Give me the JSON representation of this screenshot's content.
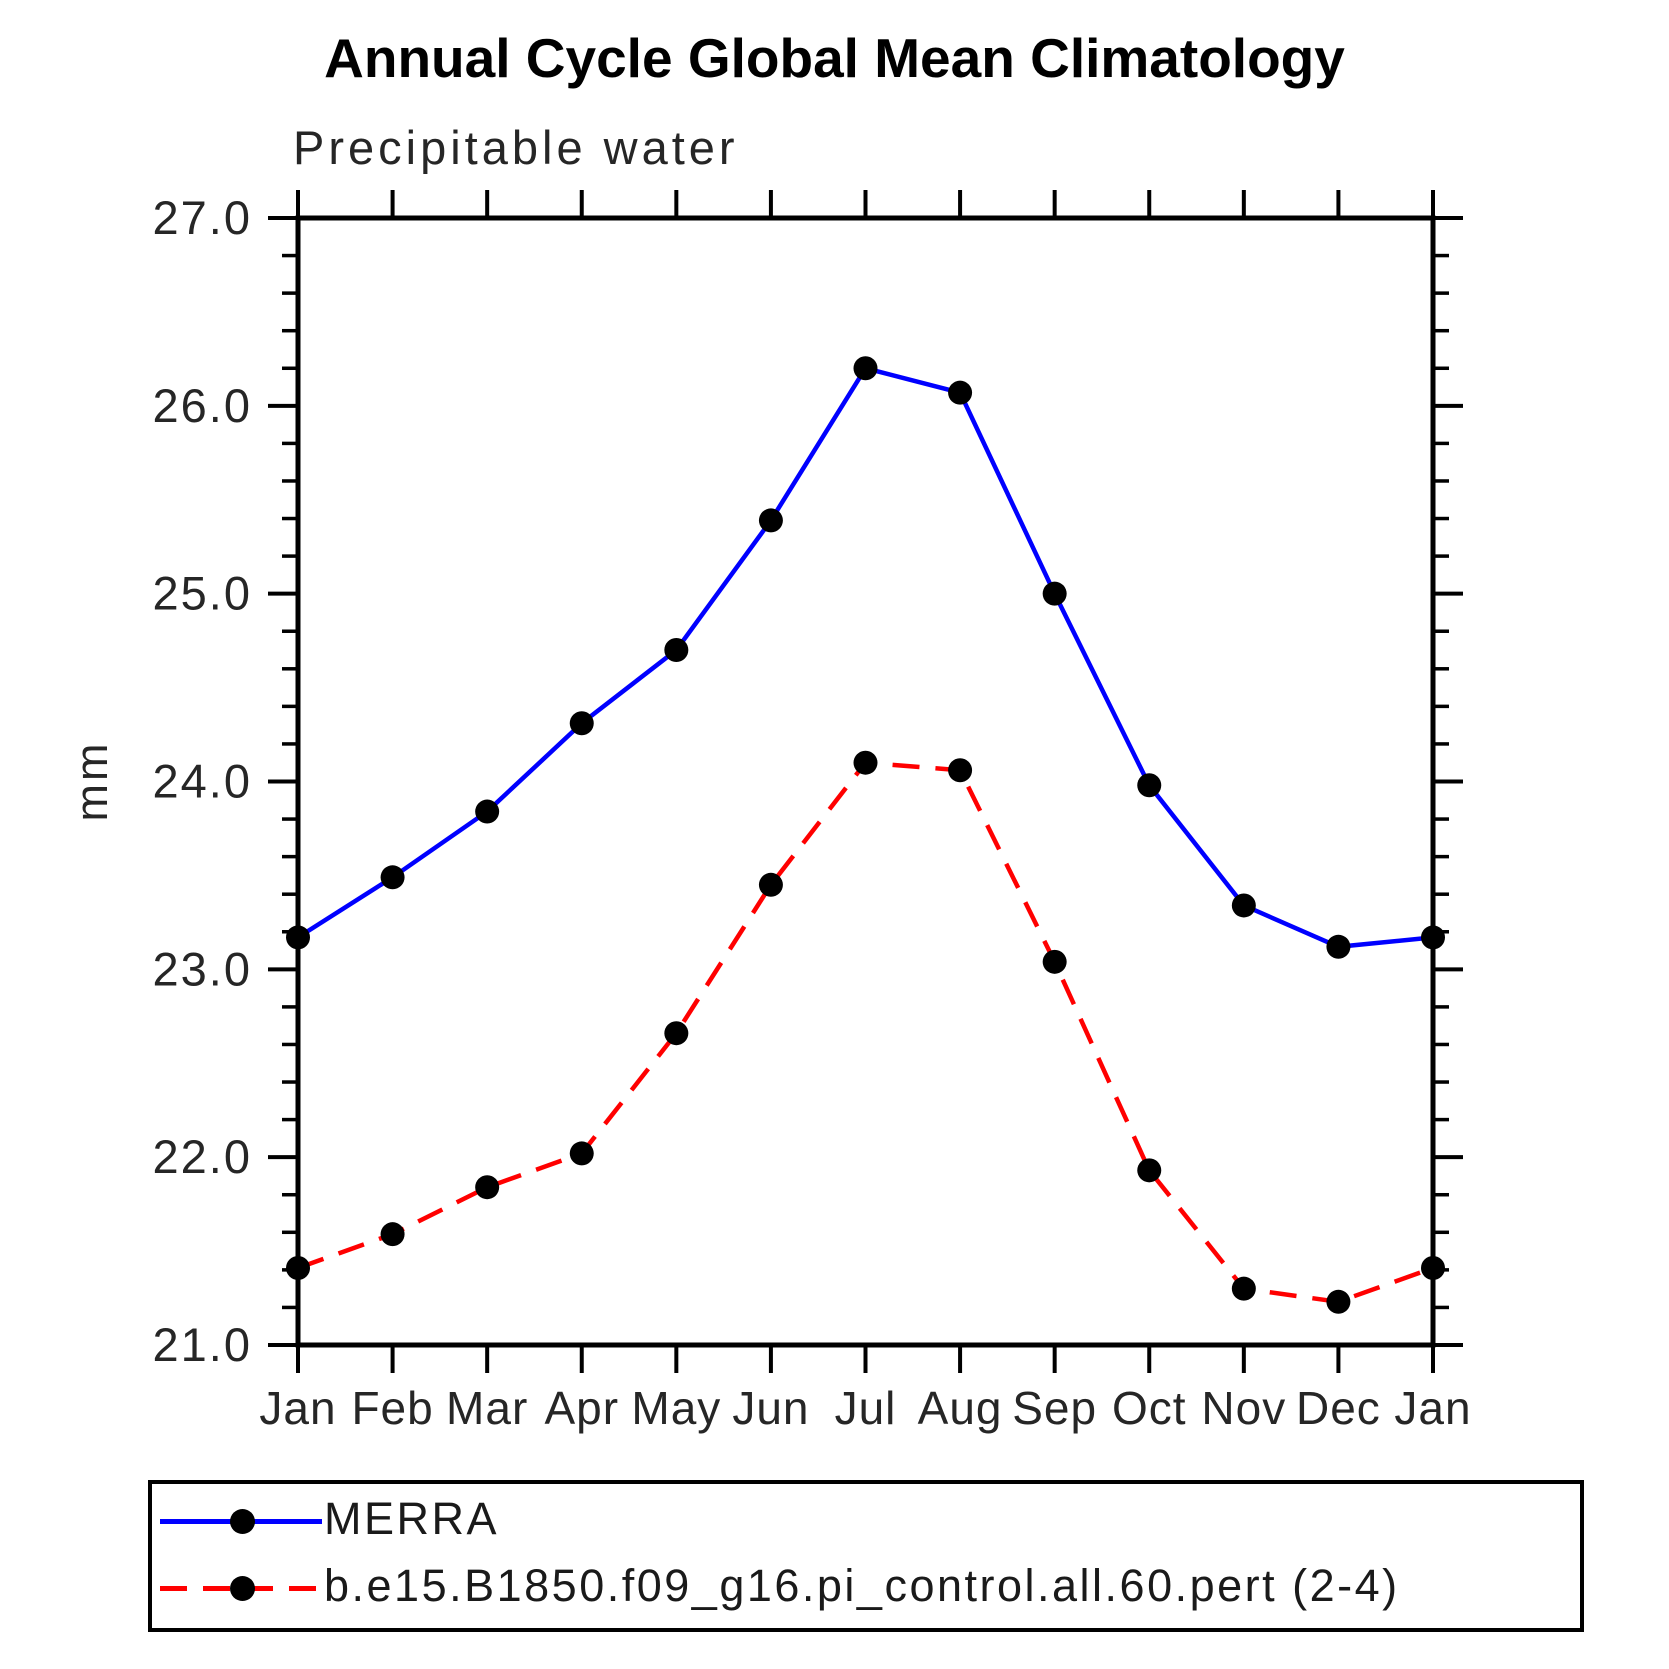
{
  "page": {
    "background": "#ffffff"
  },
  "chart_data": {
    "type": "line",
    "title": "Annual Cycle Global Mean Climatology",
    "subtitle": "Precipitable water",
    "ylabel": "mm",
    "categories": [
      "Jan",
      "Feb",
      "Mar",
      "Apr",
      "May",
      "Jun",
      "Jul",
      "Aug",
      "Sep",
      "Oct",
      "Nov",
      "Dec",
      "Jan"
    ],
    "ylim": [
      21.0,
      27.0
    ],
    "ytick_step": 1.0,
    "yminor_step": 0.2,
    "ytick_labels": [
      "21.0",
      "22.0",
      "23.0",
      "24.0",
      "25.0",
      "26.0",
      "27.0"
    ],
    "grid": false,
    "legend_position": "bottom",
    "axis_color": "#000000",
    "marker_color": "#000000",
    "text_color": "#262626",
    "series": [
      {
        "name": "MERRA",
        "color": "#0000ff",
        "line_style": "solid",
        "values": [
          23.17,
          23.49,
          23.84,
          24.31,
          24.7,
          25.39,
          26.2,
          26.07,
          25.0,
          23.98,
          23.34,
          23.12,
          23.17
        ]
      },
      {
        "name": "b.e15.B1850.f09_g16.pi_control.all.60.pert (2-4)",
        "color": "#ff0000",
        "line_style": "dashed",
        "values": [
          21.41,
          21.59,
          21.84,
          22.02,
          22.66,
          23.45,
          24.1,
          24.06,
          23.04,
          21.93,
          21.3,
          21.23,
          21.41
        ]
      }
    ]
  }
}
